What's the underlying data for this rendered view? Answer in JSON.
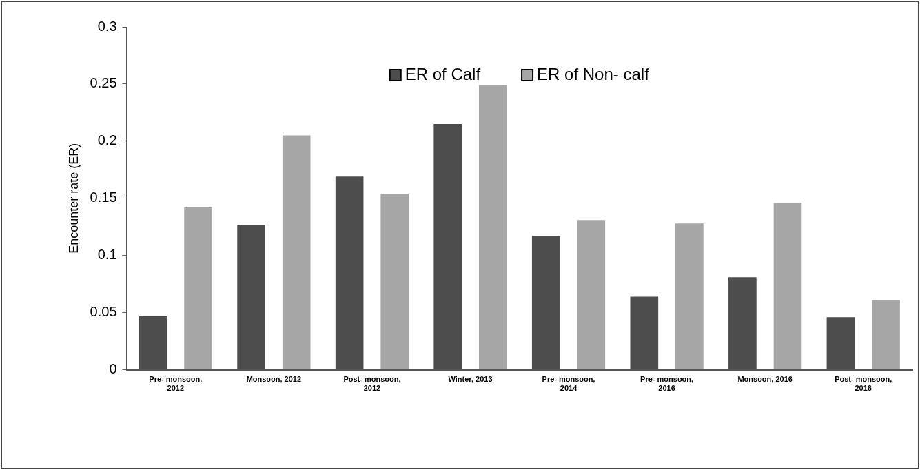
{
  "chart_data": {
    "type": "bar",
    "ylabel": "Encounter rate (ER)",
    "categories": [
      "Pre- monsoon, 2012",
      "Monsoon, 2012",
      "Post- monsoon, 2012",
      "Winter, 2013",
      "Pre- monsoon, 2014",
      "Pre- monsoon, 2016",
      "Monsoon, 2016",
      "Post- monsoon, 2016"
    ],
    "series": [
      {
        "name": "ER of Calf",
        "color": "#4d4d4d",
        "values": [
          0.047,
          0.127,
          0.169,
          0.215,
          0.117,
          0.064,
          0.081,
          0.046
        ]
      },
      {
        "name": "ER of Non- calf",
        "color": "#a6a6a6",
        "values": [
          0.142,
          0.205,
          0.154,
          0.249,
          0.131,
          0.128,
          0.146,
          0.061
        ]
      }
    ],
    "ylim": [
      0,
      0.3
    ],
    "yticks": [
      0,
      0.05,
      0.1,
      0.15,
      0.2,
      0.25,
      0.3
    ],
    "grid": false,
    "legend": "top"
  }
}
